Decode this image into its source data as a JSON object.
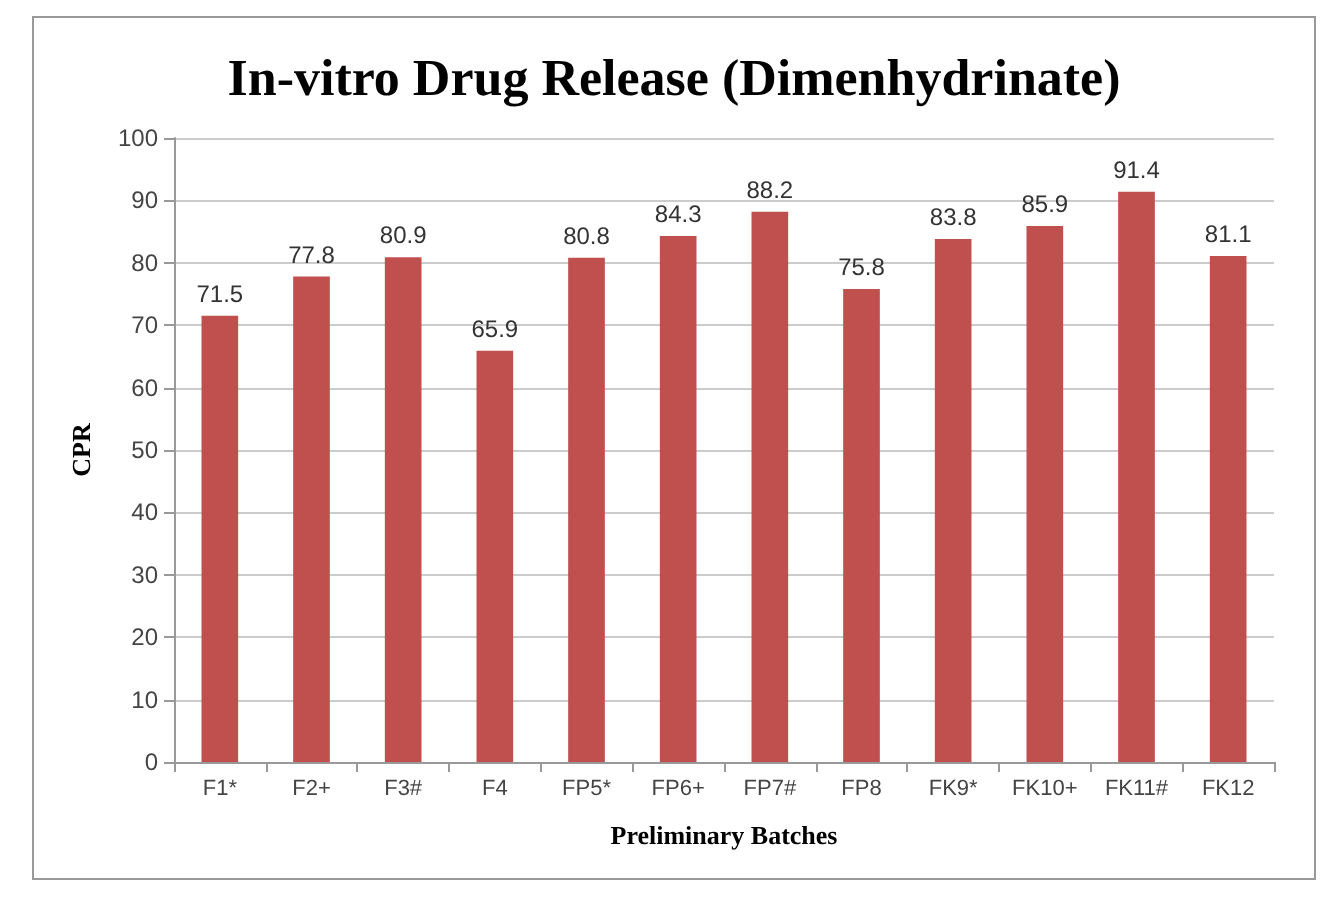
{
  "chart_data": {
    "type": "bar",
    "title": "In-vitro Drug Release (Dimenhydrinate)",
    "xlabel": "Preliminary Batches",
    "ylabel": "CPR",
    "categories": [
      "F1*",
      "F2+",
      "F3#",
      "F4",
      "FP5*",
      "FP6+",
      "FP7#",
      "FP8",
      "FK9*",
      "FK10+",
      "FK11#",
      "FK12"
    ],
    "values": [
      71.5,
      77.8,
      80.9,
      65.9,
      80.8,
      84.3,
      88.2,
      75.8,
      83.8,
      85.9,
      91.4,
      81.1
    ],
    "color": "#c0504d",
    "ylim": [
      0,
      100
    ],
    "yticks": [
      0,
      10,
      20,
      30,
      40,
      50,
      60,
      70,
      80,
      90,
      100
    ],
    "grid": true,
    "data_labels": true
  }
}
